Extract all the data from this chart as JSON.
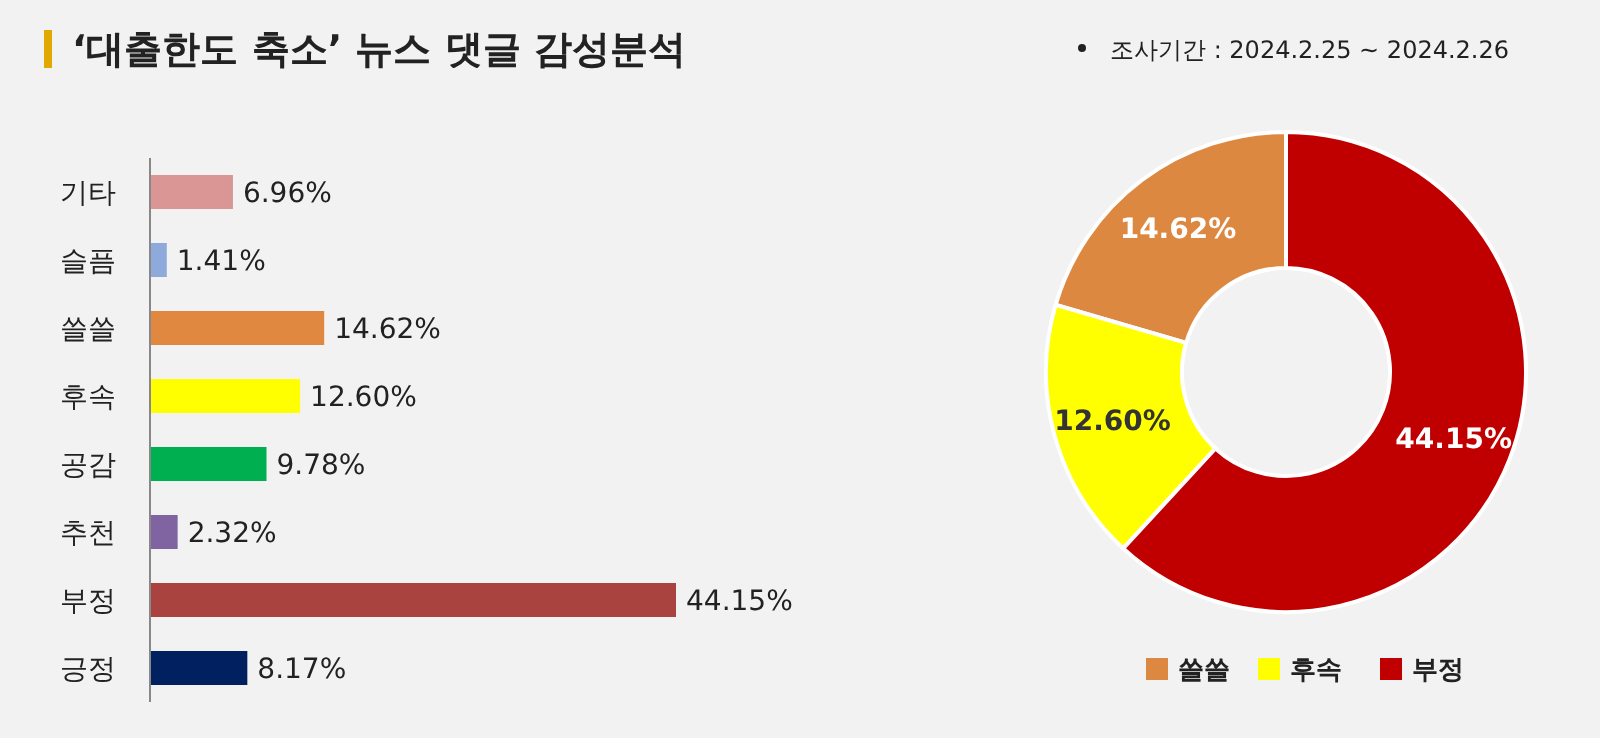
{
  "chart_data": [
    {
      "type": "bar",
      "orientation": "horizontal",
      "title": "‘대출한도 축소’ 뉴스 댓글 감성분석",
      "categories": [
        "기타",
        "슬픔",
        "쓸쓸",
        "후속",
        "공감",
        "추천",
        "부정",
        "긍정"
      ],
      "values": [
        6.96,
        1.41,
        14.62,
        12.6,
        9.78,
        2.32,
        44.15,
        8.17
      ],
      "colors": [
        "#d99694",
        "#8eaadb",
        "#e0883f",
        "#ffff00",
        "#00b050",
        "#8064a2",
        "#a84340",
        "#002060"
      ],
      "value_labels": [
        "6.96%",
        "1.41%",
        "14.62%",
        "12.60%",
        "9.78%",
        "2.32%",
        "44.15%",
        "8.17%"
      ]
    },
    {
      "type": "donut",
      "annotations": [
        "조사기간 : 2024.2.25 ~ 2024.2.26"
      ],
      "categories": [
        "쓸쓸",
        "후속",
        "부정"
      ],
      "values": [
        14.62,
        12.6,
        44.15
      ],
      "colors": [
        "#dd8840",
        "#ffff00",
        "#c00000"
      ],
      "value_labels": [
        "14.62%",
        "12.60%",
        "44.15%"
      ],
      "legend": "bottom"
    }
  ]
}
